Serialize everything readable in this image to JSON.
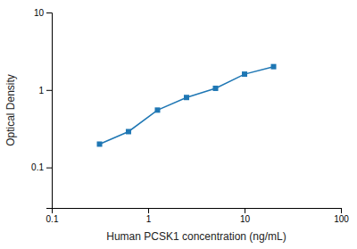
{
  "chart_data": {
    "type": "line",
    "x": [
      0.313,
      0.625,
      1.25,
      2.5,
      5.0,
      10.0,
      20.0
    ],
    "values": [
      0.2,
      0.29,
      0.55,
      0.8,
      1.05,
      1.6,
      2.0
    ],
    "xlabel": "Human PCSK1 concentration (ng/mL)",
    "ylabel": "Optical Density",
    "xlim": [
      0.1,
      100
    ],
    "ylim": [
      0.03,
      10
    ],
    "xticks": [
      0.1,
      1,
      10,
      100
    ],
    "yticks": [
      0.1,
      1,
      10
    ],
    "log": true,
    "grid": false,
    "marker": "square"
  }
}
